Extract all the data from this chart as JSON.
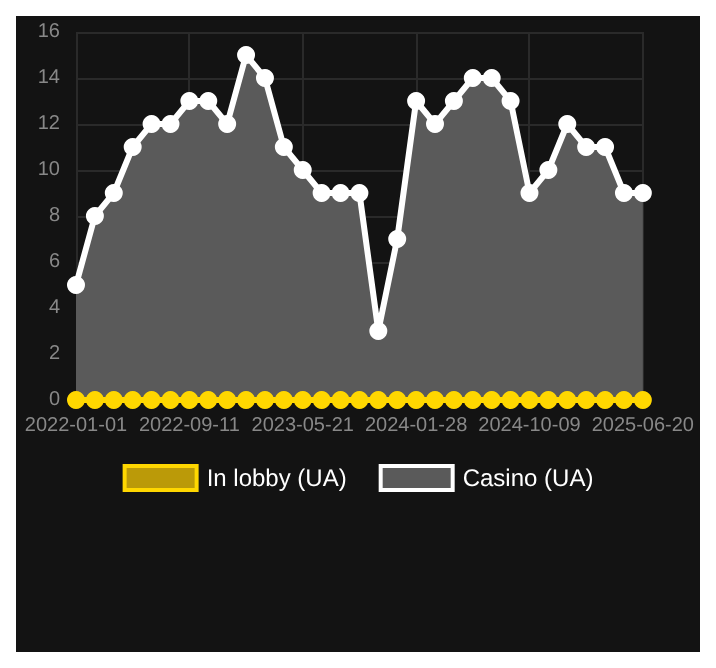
{
  "chart_data": {
    "type": "area",
    "categories": [
      "2022-01-01",
      null,
      null,
      null,
      null,
      null,
      "2022-09-11",
      null,
      null,
      null,
      null,
      null,
      "2023-05-21",
      null,
      null,
      null,
      null,
      null,
      "2024-01-28",
      null,
      null,
      null,
      null,
      null,
      "2024-10-09",
      null,
      null,
      null,
      null,
      null,
      "2025-06-20"
    ],
    "series": [
      {
        "name": "In lobby (UA)",
        "type": "line",
        "color": "#ffd700",
        "values": [
          0,
          0,
          0,
          0,
          0,
          0,
          0,
          0,
          0,
          0,
          0,
          0,
          0,
          0,
          0,
          0,
          0,
          0,
          0,
          0,
          0,
          0,
          0,
          0,
          0,
          0,
          0,
          0,
          0,
          0,
          0
        ]
      },
      {
        "name": "Casino (UA)",
        "color": "#ffffff",
        "values": [
          5,
          8,
          9,
          11,
          12,
          12,
          13,
          13,
          12,
          15,
          14,
          11,
          10,
          9,
          9,
          9,
          3,
          7,
          13,
          12,
          13,
          14,
          14,
          13,
          9,
          10,
          12,
          11,
          11,
          9,
          9
        ]
      }
    ],
    "ylim": [
      0,
      16
    ],
    "yticks": [
      0,
      2,
      4,
      6,
      8,
      10,
      12,
      14,
      16
    ],
    "grid": true,
    "legend": "bottom",
    "marker": "circle",
    "line_style": "solid"
  }
}
